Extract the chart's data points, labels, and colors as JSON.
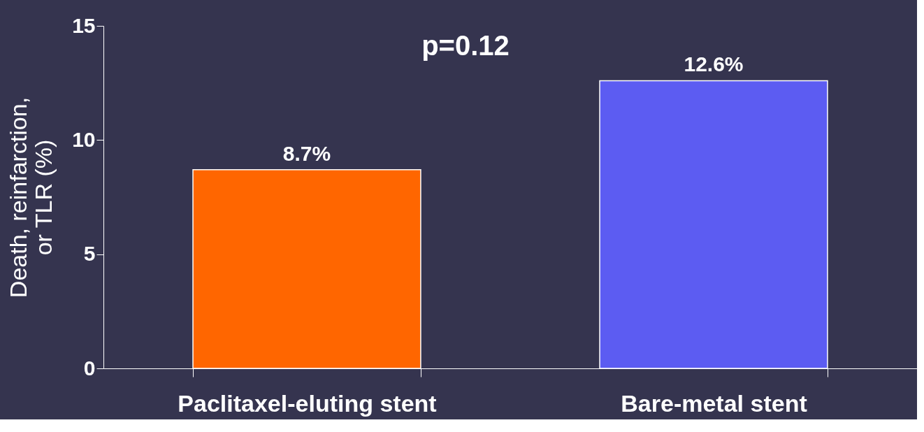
{
  "chart_data": {
    "type": "bar",
    "categories": [
      "Paclitaxel-eluting stent",
      "Bare-metal stent"
    ],
    "values": [
      8.7,
      12.6
    ],
    "colors": [
      "#ff6600",
      "#5c5cf2"
    ],
    "value_labels": [
      "8.7%",
      "12.6%"
    ],
    "ylabel": "Death, reinfarction,\nor TLR (%)",
    "ylim": [
      0,
      15
    ],
    "yticks": [
      0,
      5,
      10,
      15
    ],
    "annotations": [
      "p=0.12"
    ],
    "grid": false
  }
}
